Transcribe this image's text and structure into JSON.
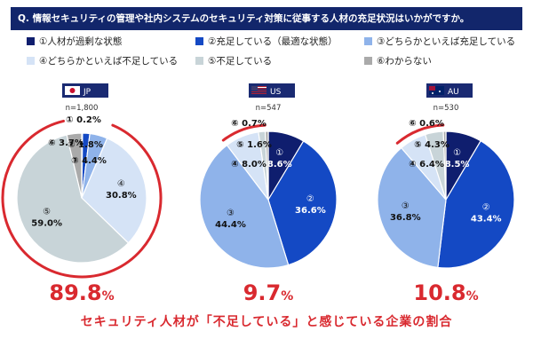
{
  "header": {
    "title": "Q. 情報セキュリティの管理や社内システムのセキュリティ対策に従事する人材の充足状況はいかがですか。"
  },
  "legend": [
    {
      "label": "①人材が過剰な状態",
      "color": "#0f1e6e"
    },
    {
      "label": "②充足している（最適な状態）",
      "color": "#1449c4"
    },
    {
      "label": "③どちらかといえば充足している",
      "color": "#8fb3ea"
    },
    {
      "label": "④どちらかといえば不足している",
      "color": "#d5e3f6"
    },
    {
      "label": "⑤不足している",
      "color": "#c8d4d8"
    },
    {
      "label": "⑥わからない",
      "color": "#aaaaaa"
    }
  ],
  "colors": {
    "highlight": "#d9292f"
  },
  "chart_data": [
    {
      "type": "pie",
      "country": "JP",
      "flag": "japan-flag",
      "n_label": "n=1,800",
      "categories": [
        "①",
        "②",
        "③",
        "④",
        "⑤",
        "⑥"
      ],
      "values": [
        0.2,
        1.8,
        4.4,
        30.8,
        59.0,
        3.7
      ],
      "value_labels": [
        "0.2%",
        "1.8%",
        "4.4%",
        "30.8%",
        "59.0%",
        "3.7%"
      ],
      "big_number": "89.8",
      "big_unit": "%"
    },
    {
      "type": "pie",
      "country": "US",
      "flag": "usa-flag",
      "n_label": "n=547",
      "categories": [
        "①",
        "②",
        "③",
        "④",
        "⑤",
        "⑥"
      ],
      "values": [
        8.6,
        36.6,
        44.4,
        8.0,
        1.6,
        0.7
      ],
      "value_labels": [
        "8.6%",
        "36.6%",
        "44.4%",
        "8.0%",
        "1.6%",
        "0.7%"
      ],
      "big_number": "9.7",
      "big_unit": "%"
    },
    {
      "type": "pie",
      "country": "AU",
      "flag": "australia-flag",
      "n_label": "n=530",
      "categories": [
        "①",
        "②",
        "③",
        "④",
        "⑤",
        "⑥"
      ],
      "values": [
        8.5,
        43.4,
        36.8,
        6.4,
        4.3,
        0.6
      ],
      "value_labels": [
        "8.5%",
        "43.4%",
        "36.8%",
        "6.4%",
        "4.3%",
        "0.6%"
      ],
      "big_number": "10.8",
      "big_unit": "%"
    }
  ],
  "caption": "セキュリティ人材が「不足している」と感じている企業の割合"
}
